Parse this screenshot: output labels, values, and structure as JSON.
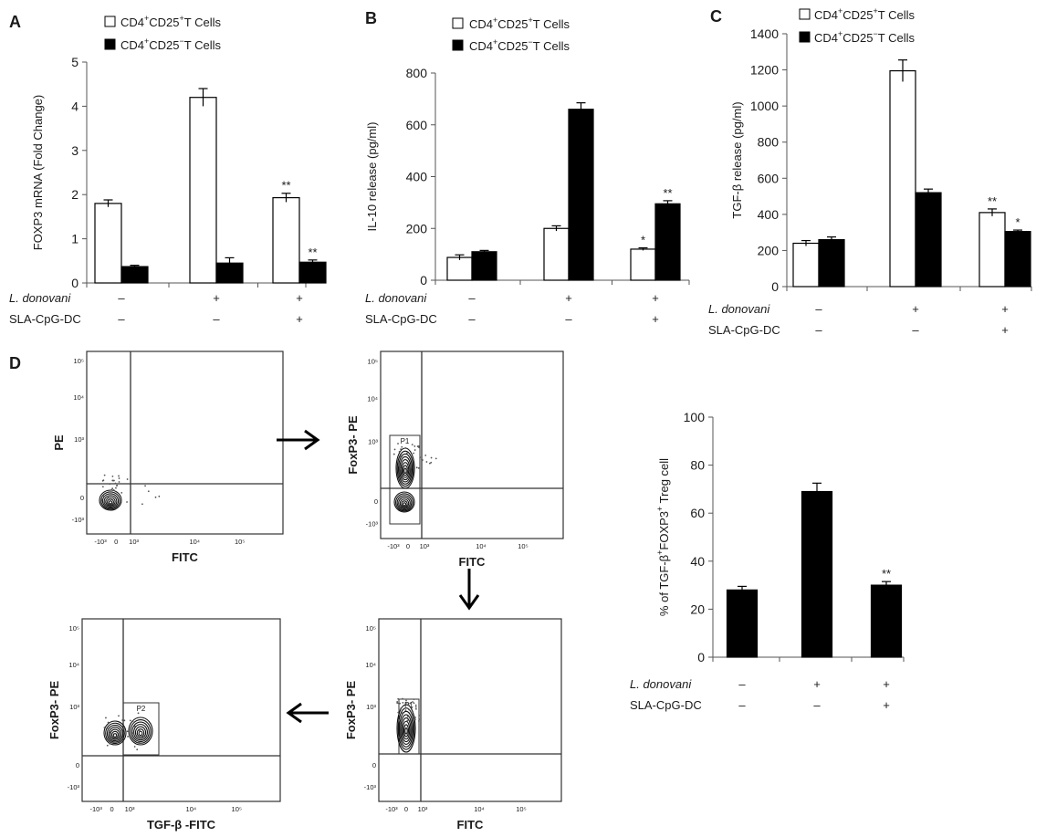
{
  "panels": {
    "A": {
      "letter": "A"
    },
    "B": {
      "letter": "B"
    },
    "C": {
      "letter": "C"
    },
    "D": {
      "letter": "D"
    }
  },
  "legend": {
    "pos_base": "CD4",
    "pos_sup1": "+",
    "pos_mid": "CD25",
    "pos_sup2": "+",
    "pos_tail": "T Cells",
    "neg_base": "CD4",
    "neg_sup1": "+",
    "neg_mid": "CD25",
    "neg_sup2": "−",
    "neg_tail": "T Cells"
  },
  "conditions": {
    "ldon_label": "L. donovani",
    "sla_label": "SLA-CpG-DC",
    "ldon_signs": [
      "–",
      "+",
      "+"
    ],
    "sla_signs": [
      "–",
      "–",
      "+"
    ]
  },
  "colors": {
    "open_bar": "#ffffff",
    "filled_bar": "#000000",
    "axis": "#555555"
  },
  "chart_data": [
    {
      "id": "A",
      "type": "bar",
      "ylabel": "FOXP3 mRNA (Fold Change)",
      "ylim": [
        0,
        5
      ],
      "yticks": [
        0,
        1,
        2,
        3,
        4,
        5
      ],
      "groups": 3,
      "series": [
        {
          "name": "CD4+CD25+ T Cells",
          "values": [
            1.8,
            4.2,
            1.93
          ],
          "errors": [
            0.08,
            0.2,
            0.1
          ],
          "annotations": [
            "",
            "",
            "**"
          ]
        },
        {
          "name": "CD4+CD25- T Cells",
          "values": [
            0.37,
            0.45,
            0.47
          ],
          "errors": [
            0.03,
            0.12,
            0.05
          ],
          "annotations": [
            "",
            "",
            "**"
          ]
        }
      ]
    },
    {
      "id": "B",
      "type": "bar",
      "ylabel": "IL-10 release (pg/ml)",
      "ylim": [
        0,
        800
      ],
      "yticks": [
        0,
        200,
        400,
        600,
        800
      ],
      "groups": 3,
      "series": [
        {
          "name": "CD4+CD25+ T Cells",
          "values": [
            88,
            200,
            120
          ],
          "errors": [
            10,
            10,
            5
          ],
          "annotations": [
            "",
            "",
            "*"
          ]
        },
        {
          "name": "CD4+CD25- T Cells",
          "values": [
            110,
            660,
            295
          ],
          "errors": [
            5,
            25,
            12
          ],
          "annotations": [
            "",
            "",
            "**"
          ]
        }
      ]
    },
    {
      "id": "C",
      "type": "bar",
      "ylabel": "TGF-β release (pg/ml)",
      "ylim": [
        0,
        1400
      ],
      "yticks": [
        0,
        200,
        400,
        600,
        800,
        1000,
        1200,
        1400
      ],
      "groups": 3,
      "series": [
        {
          "name": "CD4+CD25+ T Cells",
          "values": [
            240,
            1195,
            410
          ],
          "errors": [
            15,
            60,
            20
          ],
          "annotations": [
            "",
            "",
            "**"
          ]
        },
        {
          "name": "CD4+CD25- T Cells",
          "values": [
            260,
            520,
            305
          ],
          "errors": [
            15,
            20,
            8
          ],
          "annotations": [
            "",
            "",
            "*"
          ]
        }
      ]
    },
    {
      "id": "D",
      "type": "bar",
      "ylabel_pre": "% of TGF-β",
      "ylabel_sup1": "+",
      "ylabel_mid": "FOXP3",
      "ylabel_sup2": "+",
      "ylabel_post": "Treg cell",
      "ylim": [
        0,
        100
      ],
      "yticks": [
        0,
        20,
        40,
        60,
        80,
        100
      ],
      "groups": 3,
      "series": [
        {
          "name": "TGF-β+FOXP3+ Treg cell",
          "values": [
            28,
            69,
            30
          ],
          "errors": [
            1.5,
            3.5,
            1.5
          ],
          "annotations": [
            "",
            "",
            "**"
          ]
        }
      ]
    }
  ],
  "flow": {
    "axis_ticks": [
      "-10³",
      "0",
      "10³",
      "10⁴",
      "10⁵"
    ],
    "plot1": {
      "ylabel": "PE",
      "xlabel": "FITC"
    },
    "plot2": {
      "ylabel": "FoxP3- PE",
      "xlabel": "FITC",
      "gate": "P1"
    },
    "plot3": {
      "ylabel": "FoxP3- PE",
      "xlabel": "FITC",
      "gate": "P1"
    },
    "plot4": {
      "ylabel": "FoxP3- PE",
      "xlabel": "TGF-β -FITC",
      "gate": "P2"
    },
    "arrows": [
      "right",
      "down",
      "left"
    ]
  }
}
